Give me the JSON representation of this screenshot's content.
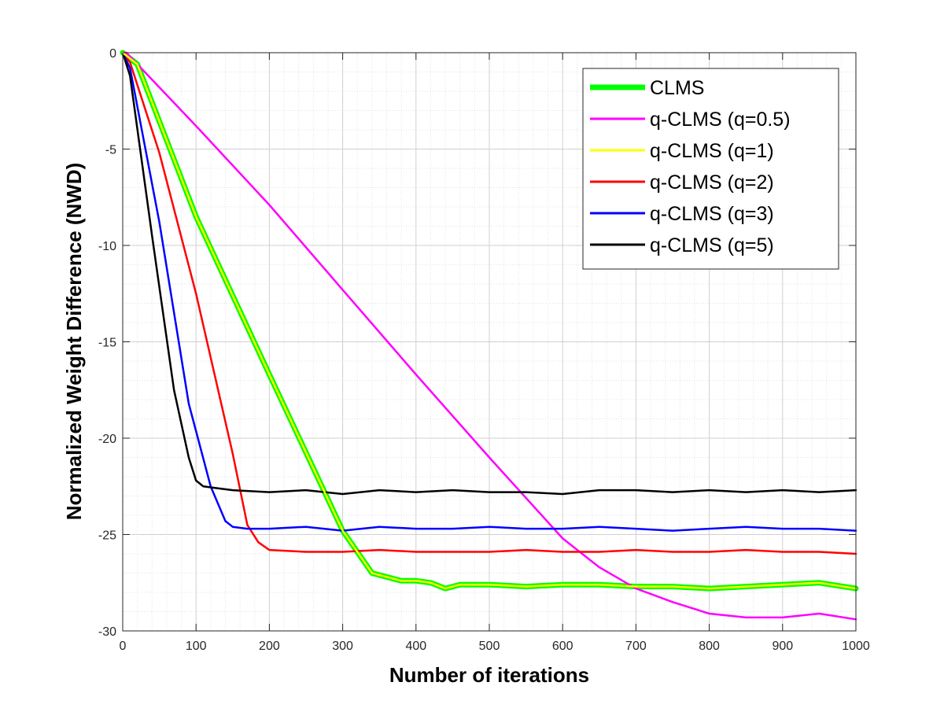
{
  "chart_data": {
    "type": "line",
    "title": "",
    "xlabel": "Number of iterations",
    "ylabel": "Normalized Weight Difference (NWD)",
    "xlim": [
      0,
      1000
    ],
    "ylim": [
      -30,
      0
    ],
    "xticks": [
      0,
      100,
      200,
      300,
      400,
      500,
      600,
      700,
      800,
      900,
      1000
    ],
    "yticks": [
      -30,
      -25,
      -20,
      -15,
      -10,
      -5,
      0
    ],
    "xtick_labels": [
      "0",
      "100",
      "200",
      "300",
      "400",
      "500",
      "600",
      "700",
      "800",
      "900",
      "1000"
    ],
    "ytick_labels": [
      "-30",
      "-25",
      "-20",
      "-15",
      "-10",
      "-5",
      "0"
    ],
    "grid": true,
    "minor_grid": true,
    "legend_position": "top-right",
    "series": [
      {
        "name": "CLMS",
        "color": "#00ff00",
        "style": "thick",
        "x": [
          0,
          20,
          100,
          200,
          300,
          340,
          380,
          400,
          420,
          440,
          460,
          500,
          550,
          600,
          650,
          700,
          750,
          800,
          850,
          900,
          950,
          1000
        ],
        "y": [
          0,
          -0.6,
          -8.5,
          -16.7,
          -24.8,
          -27.0,
          -27.4,
          -27.4,
          -27.5,
          -27.8,
          -27.6,
          -27.6,
          -27.7,
          -27.6,
          -27.6,
          -27.7,
          -27.7,
          -27.8,
          -27.7,
          -27.6,
          -27.5,
          -27.8
        ]
      },
      {
        "name": "q-CLMS (q=0.5)",
        "color": "#ff00ff",
        "style": "normal",
        "x": [
          0,
          5,
          100,
          200,
          300,
          400,
          500,
          600,
          650,
          700,
          750,
          800,
          850,
          900,
          950,
          1000
        ],
        "y": [
          0,
          0,
          -3.8,
          -7.9,
          -12.3,
          -16.7,
          -21.0,
          -25.2,
          -26.7,
          -27.8,
          -28.5,
          -29.1,
          -29.3,
          -29.3,
          -29.1,
          -29.4
        ]
      },
      {
        "name": "q-CLMS (q=1)",
        "color": "#ffff00",
        "style": "normal",
        "x": [
          0,
          20,
          100,
          200,
          300,
          340,
          380,
          400,
          420,
          440,
          460,
          500,
          550,
          600,
          650,
          700,
          750,
          800,
          850,
          900,
          950,
          1000
        ],
        "y": [
          0,
          -0.6,
          -8.5,
          -16.7,
          -24.8,
          -27.0,
          -27.4,
          -27.4,
          -27.5,
          -27.8,
          -27.6,
          -27.6,
          -27.7,
          -27.6,
          -27.6,
          -27.7,
          -27.7,
          -27.8,
          -27.7,
          -27.6,
          -27.5,
          -27.8
        ]
      },
      {
        "name": "q-CLMS (q=2)",
        "color": "#ff0000",
        "style": "normal",
        "x": [
          0,
          10,
          50,
          100,
          150,
          170,
          185,
          200,
          250,
          300,
          350,
          400,
          450,
          500,
          550,
          600,
          650,
          700,
          750,
          800,
          850,
          900,
          950,
          1000
        ],
        "y": [
          0,
          -0.5,
          -5.2,
          -12.5,
          -20.8,
          -24.5,
          -25.4,
          -25.8,
          -25.9,
          -25.9,
          -25.8,
          -25.9,
          -25.9,
          -25.9,
          -25.8,
          -25.9,
          -25.9,
          -25.8,
          -25.9,
          -25.9,
          -25.8,
          -25.9,
          -25.9,
          -26.0
        ]
      },
      {
        "name": "q-CLMS (q=3)",
        "color": "#0000ff",
        "style": "normal",
        "x": [
          0,
          10,
          50,
          90,
          120,
          140,
          150,
          170,
          200,
          250,
          300,
          350,
          400,
          450,
          500,
          550,
          600,
          650,
          700,
          750,
          800,
          850,
          900,
          950,
          1000
        ],
        "y": [
          0,
          -0.8,
          -8.8,
          -18.2,
          -22.5,
          -24.3,
          -24.6,
          -24.7,
          -24.7,
          -24.6,
          -24.8,
          -24.6,
          -24.7,
          -24.7,
          -24.6,
          -24.7,
          -24.7,
          -24.6,
          -24.7,
          -24.8,
          -24.7,
          -24.6,
          -24.7,
          -24.7,
          -24.8
        ]
      },
      {
        "name": "q-CLMS (q=5)",
        "color": "#000000",
        "style": "normal",
        "x": [
          0,
          10,
          40,
          70,
          90,
          100,
          110,
          130,
          150,
          200,
          250,
          300,
          350,
          400,
          450,
          500,
          550,
          600,
          650,
          700,
          750,
          800,
          850,
          900,
          950,
          1000
        ],
        "y": [
          0,
          -1.2,
          -9.5,
          -17.5,
          -21.0,
          -22.2,
          -22.5,
          -22.6,
          -22.7,
          -22.8,
          -22.7,
          -22.9,
          -22.7,
          -22.8,
          -22.7,
          -22.8,
          -22.8,
          -22.9,
          -22.7,
          -22.7,
          -22.8,
          -22.7,
          -22.8,
          -22.7,
          -22.8,
          -22.7
        ]
      }
    ]
  }
}
